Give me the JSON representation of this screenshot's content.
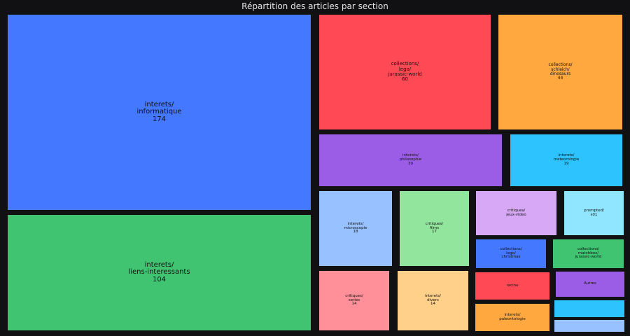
{
  "chart_data": {
    "type": "treemap",
    "title": "Répartition des articles par section",
    "tiles": [
      {
        "path": "interets/informatique",
        "label": "interets/\ninformatique\n174",
        "value": 174,
        "color": "#4378ff"
      },
      {
        "path": "interets/liens-interessants",
        "label": "interets/\nliens-interessants\n104",
        "value": 104,
        "color": "#40c472"
      },
      {
        "path": "collections/lego/jurassic-world",
        "label": "collections/\nlego/\njurassic-world\n60",
        "value": 60,
        "color": "#ff4a55"
      },
      {
        "path": "collections/schleich/dinosaurs",
        "label": "collections/\nschleich/\ndinosaurs\n44",
        "value": 44,
        "color": "#ffa840"
      },
      {
        "path": "interets/philosophie",
        "label": "interets/\nphilosophie\n30",
        "value": 30,
        "color": "#9b5de5"
      },
      {
        "path": "interets/meteorologie",
        "label": "interets/\nmeteorologie\n19",
        "value": 19,
        "color": "#2dc3ff"
      },
      {
        "path": "interets/microscopie",
        "label": "interets/\nmicroscopie\n18",
        "value": 18,
        "color": "#98c1ff"
      },
      {
        "path": "critiques/films",
        "label": "critiques/\nfilms\n17",
        "value": 17,
        "color": "#92e59c"
      },
      {
        "path": "critiques/jeux-video",
        "label": "critiques/\njeux-video",
        "value": null,
        "color": "#d6a8f5"
      },
      {
        "path": "prompted/s01",
        "label": "prompted/\ns01",
        "value": null,
        "color": "#90e6ff"
      },
      {
        "path": "collections/lego/christmas",
        "label": "collections/\nlego/\nchristmas",
        "value": null,
        "color": "#4378ff"
      },
      {
        "path": "collections/matchbox/jurassic-world",
        "label": "collections/\nmatchbox/\njurassic-world",
        "value": null,
        "color": "#40c472"
      },
      {
        "path": "critiques/series",
        "label": "critiques/\nseries\n14",
        "value": 14,
        "color": "#ff8f98"
      },
      {
        "path": "interets/divers",
        "label": "interets/\ndivers\n14",
        "value": 14,
        "color": "#ffd08a"
      },
      {
        "path": "racine",
        "label": "racine",
        "value": null,
        "color": "#ff4a55"
      },
      {
        "path": "interets/paleontologie",
        "label": "interets/\npaleontologie",
        "value": null,
        "color": "#ffa840"
      },
      {
        "path": "Autres",
        "label": "Autres",
        "value": null,
        "color": "#9b5de5"
      },
      {
        "path": "",
        "label": "",
        "value": null,
        "color": "#2dc3ff"
      },
      {
        "path": "",
        "label": "",
        "value": null,
        "color": "#98c1ff"
      }
    ]
  }
}
